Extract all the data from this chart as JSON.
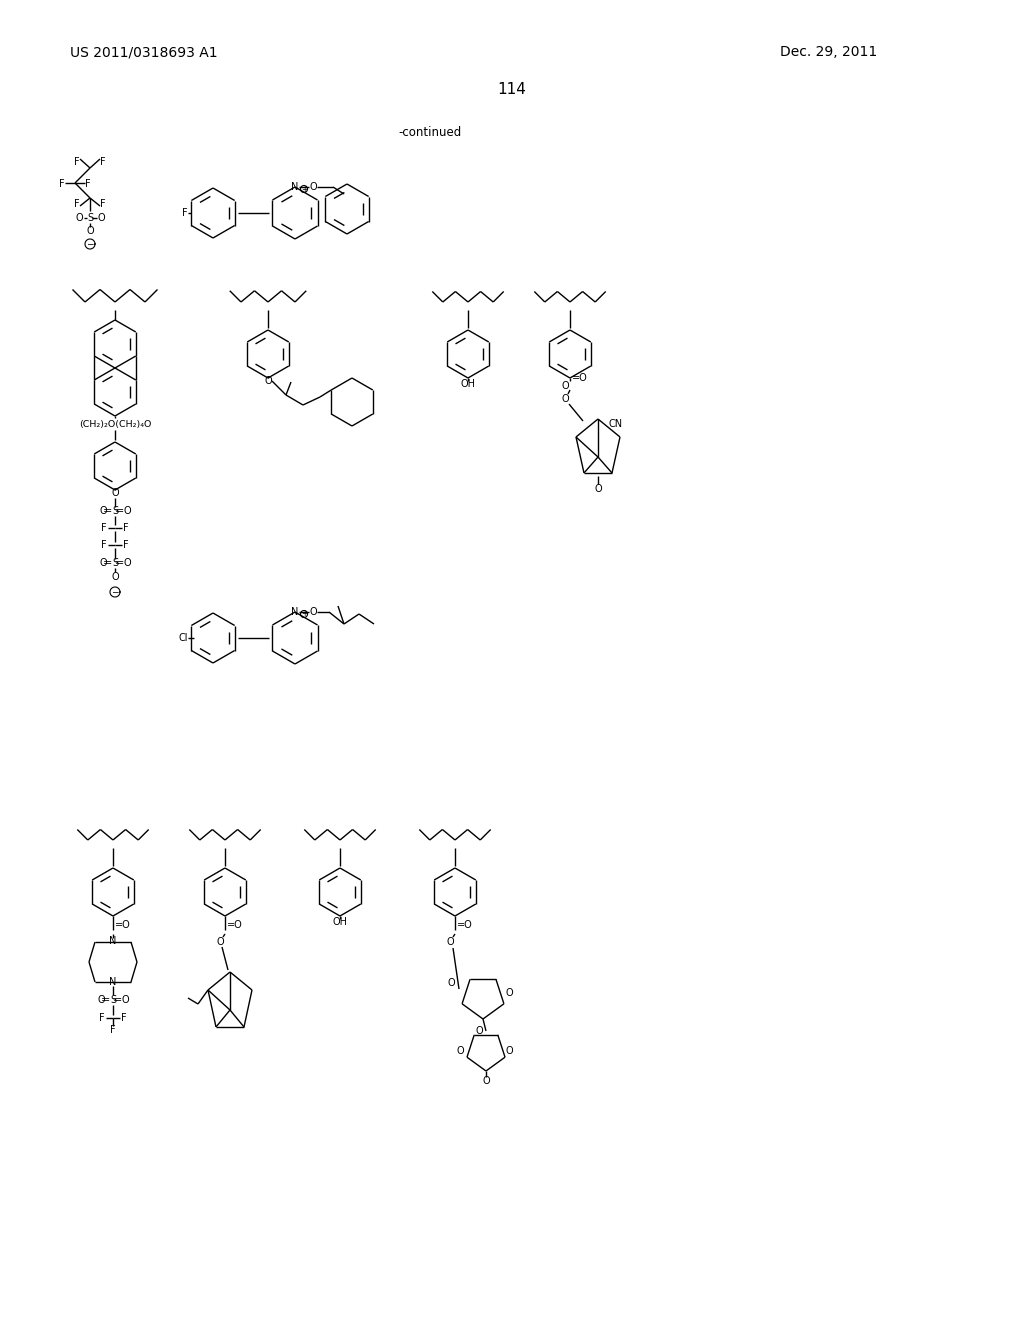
{
  "page_number": "114",
  "patent_number": "US 2011/0318693 A1",
  "date": "Dec. 29, 2011",
  "continued_label": "-continued",
  "background_color": "#ffffff",
  "text_color": "#000000",
  "lw": 1.0,
  "fs": 7.5
}
